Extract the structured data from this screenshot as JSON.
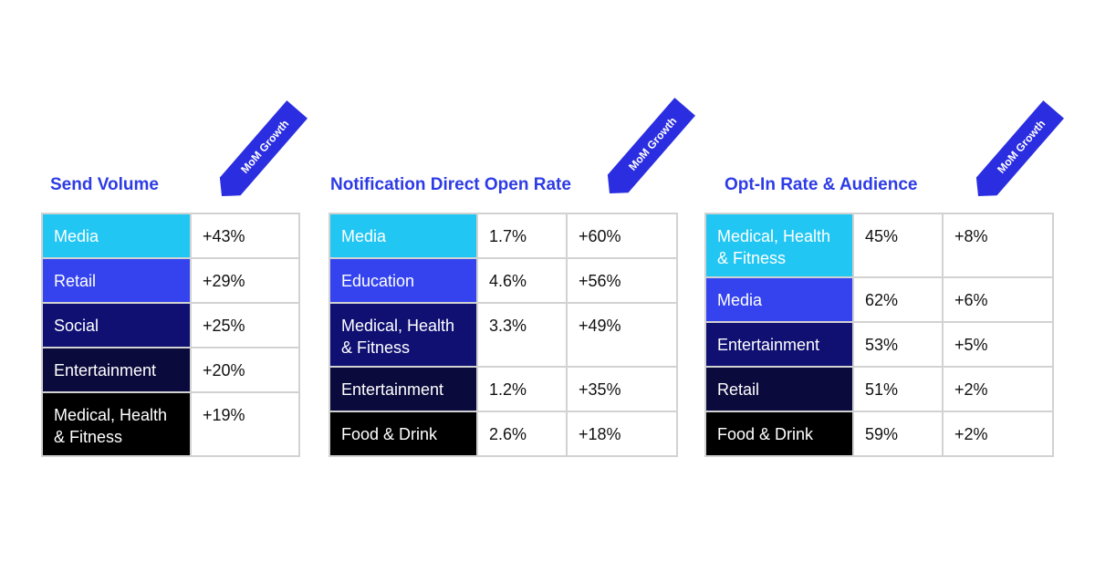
{
  "tables": [
    {
      "title": "Send Volume",
      "badge": "MoM Growth",
      "rows": [
        [
          "Media",
          "+43%"
        ],
        [
          "Retail",
          "+29%"
        ],
        [
          "Social",
          "+25%"
        ],
        [
          "Entertainment",
          "+20%"
        ],
        [
          "Medical, Health & Fitness",
          "+19%"
        ]
      ]
    },
    {
      "title": "Notification Direct Open Rate",
      "badge": "MoM Growth",
      "rows": [
        [
          "Media",
          "1.7%",
          "+60%"
        ],
        [
          "Education",
          "4.6%",
          "+56%"
        ],
        [
          "Medical, Health & Fitness",
          "3.3%",
          "+49%"
        ],
        [
          "Entertainment",
          "1.2%",
          "+35%"
        ],
        [
          "Food & Drink",
          "2.6%",
          "+18%"
        ]
      ]
    },
    {
      "title": "Opt-In Rate & Audience",
      "badge": "MoM Growth",
      "rows": [
        [
          "Medical, Health & Fitness",
          "45%",
          "+8%"
        ],
        [
          "Media",
          "62%",
          "+6%"
        ],
        [
          "Entertainment",
          "53%",
          "+5%"
        ],
        [
          "Retail",
          "51%",
          "+2%"
        ],
        [
          "Food & Drink",
          "59%",
          "+2%"
        ]
      ]
    }
  ]
}
